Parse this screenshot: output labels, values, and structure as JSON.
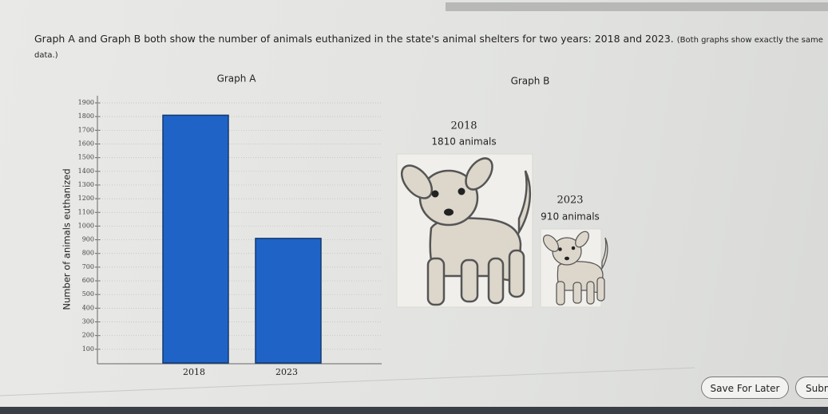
{
  "question": "Graph A and Graph B both show the number of animals euthanized in the state's animal shelters for two years: 2018 and 2023.",
  "note": "(Both graphs show exactly the same data.)",
  "chart_data": {
    "type": "bar",
    "title": "Graph A",
    "y_label": "Number of animals euthanized",
    "categories": [
      "2018",
      "2023"
    ],
    "values": [
      1810,
      910
    ],
    "color": "#1f63c6",
    "ylim": [
      0,
      1900
    ],
    "yticks": [
      100,
      200,
      300,
      400,
      500,
      600,
      700,
      800,
      900,
      1000,
      1100,
      1200,
      1300,
      1400,
      1500,
      1600,
      1700,
      1800,
      1900
    ],
    "grid": true
  },
  "graph_b": {
    "title": "Graph B",
    "items": [
      {
        "year": "2018",
        "label": "1810 animals"
      },
      {
        "year": "2023",
        "label": "910 animals"
      }
    ]
  },
  "buttons": {
    "save": "Save For Later",
    "submit": "Submit"
  }
}
